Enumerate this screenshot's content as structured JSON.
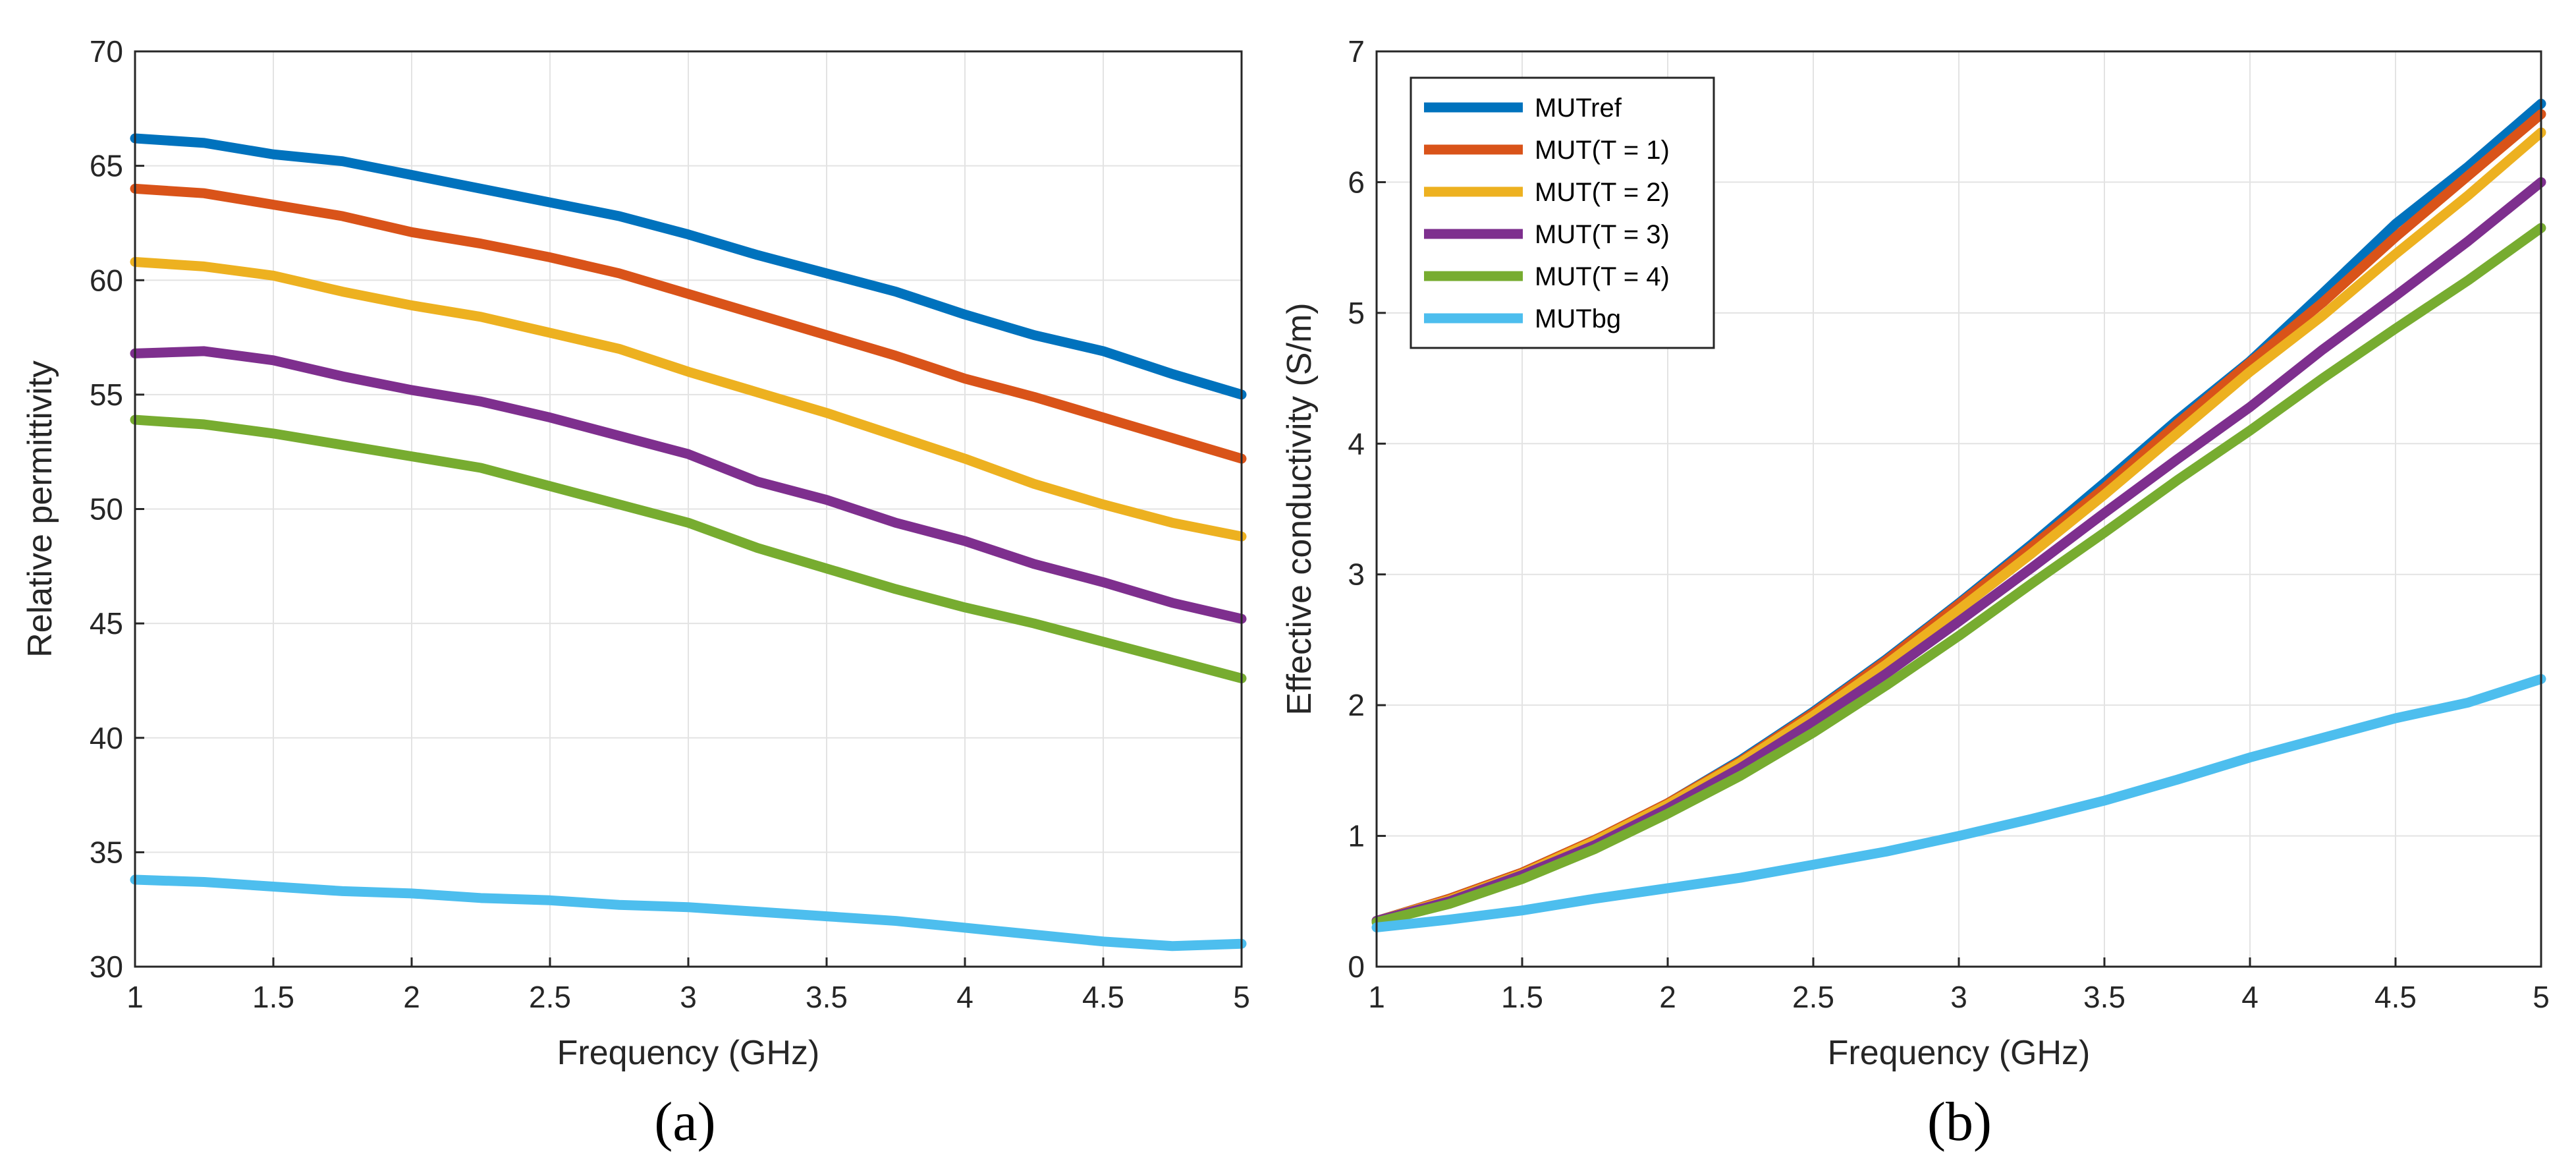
{
  "colors": {
    "MUTref": "#0072BD",
    "MUT(T = 1)": "#D95319",
    "MUT(T = 2)": "#EDB120",
    "MUT(T = 3)": "#7E2F8E",
    "MUT(T = 4)": "#77AC30",
    "MUTbg": "#4DBEEE"
  },
  "chart_data": [
    {
      "type": "line",
      "caption": "(a)",
      "xlabel": "Frequency (GHz)",
      "ylabel": "Relative permittivity",
      "xlim": [
        1,
        5
      ],
      "ylim": [
        30,
        70
      ],
      "xticks": [
        "1",
        "1.5",
        "2",
        "2.5",
        "3",
        "3.5",
        "4",
        "4.5",
        "5"
      ],
      "yticks": [
        "30",
        "35",
        "40",
        "45",
        "50",
        "55",
        "60",
        "65",
        "70"
      ],
      "grid": true,
      "legend": false,
      "x": [
        1,
        1.25,
        1.5,
        1.75,
        2,
        2.25,
        2.5,
        2.75,
        3,
        3.25,
        3.5,
        3.75,
        4,
        4.25,
        4.5,
        4.75,
        5
      ],
      "series": [
        {
          "name": "MUTref",
          "values": [
            66.2,
            66.0,
            65.5,
            65.2,
            64.6,
            64.0,
            63.4,
            62.8,
            62.0,
            61.1,
            60.3,
            59.5,
            58.5,
            57.6,
            56.9,
            55.9,
            55.0
          ]
        },
        {
          "name": "MUT(T = 1)",
          "values": [
            64.0,
            63.8,
            63.3,
            62.8,
            62.1,
            61.6,
            61.0,
            60.3,
            59.4,
            58.5,
            57.6,
            56.7,
            55.7,
            54.9,
            54.0,
            53.1,
            52.2
          ]
        },
        {
          "name": "MUT(T = 2)",
          "values": [
            60.8,
            60.6,
            60.2,
            59.5,
            58.9,
            58.4,
            57.7,
            57.0,
            56.0,
            55.1,
            54.2,
            53.2,
            52.2,
            51.1,
            50.2,
            49.4,
            48.8
          ]
        },
        {
          "name": "MUT(T = 3)",
          "values": [
            56.8,
            56.9,
            56.5,
            55.8,
            55.2,
            54.7,
            54.0,
            53.2,
            52.4,
            51.2,
            50.4,
            49.4,
            48.6,
            47.6,
            46.8,
            45.9,
            45.2
          ]
        },
        {
          "name": "MUT(T = 4)",
          "values": [
            53.9,
            53.7,
            53.3,
            52.8,
            52.3,
            51.8,
            51.0,
            50.2,
            49.4,
            48.3,
            47.4,
            46.5,
            45.7,
            45.0,
            44.2,
            43.4,
            42.6
          ]
        },
        {
          "name": "MUTbg",
          "values": [
            33.8,
            33.7,
            33.5,
            33.3,
            33.2,
            33.0,
            32.9,
            32.7,
            32.6,
            32.4,
            32.2,
            32.0,
            31.7,
            31.4,
            31.1,
            30.9,
            31.0
          ]
        }
      ]
    },
    {
      "type": "line",
      "caption": "(b)",
      "xlabel": "Frequency (GHz)",
      "ylabel": "Effective conductivity (S/m)",
      "xlim": [
        1,
        5
      ],
      "ylim": [
        0,
        7
      ],
      "xticks": [
        "1",
        "1.5",
        "2",
        "2.5",
        "3",
        "3.5",
        "4",
        "4.5",
        "5"
      ],
      "yticks": [
        "0",
        "1",
        "2",
        "3",
        "4",
        "5",
        "6",
        "7"
      ],
      "grid": true,
      "legend": "top-left",
      "x": [
        1,
        1.25,
        1.5,
        1.75,
        2,
        2.25,
        2.5,
        2.75,
        3,
        3.25,
        3.5,
        3.75,
        4,
        4.25,
        4.5,
        4.75,
        5
      ],
      "series": [
        {
          "name": "MUTref",
          "values": [
            0.35,
            0.52,
            0.72,
            0.97,
            1.25,
            1.58,
            1.95,
            2.35,
            2.78,
            3.23,
            3.7,
            4.18,
            4.63,
            5.15,
            5.68,
            6.12,
            6.6
          ]
        },
        {
          "name": "MUT(T = 1)",
          "values": [
            0.35,
            0.52,
            0.72,
            0.97,
            1.25,
            1.57,
            1.94,
            2.34,
            2.77,
            3.21,
            3.66,
            4.15,
            4.62,
            5.08,
            5.58,
            6.05,
            6.52
          ]
        },
        {
          "name": "MUT(T = 2)",
          "values": [
            0.35,
            0.51,
            0.71,
            0.96,
            1.24,
            1.56,
            1.92,
            2.31,
            2.73,
            3.16,
            3.61,
            4.08,
            4.55,
            4.98,
            5.45,
            5.9,
            6.38
          ]
        },
        {
          "name": "MUT(T = 3)",
          "values": [
            0.35,
            0.5,
            0.7,
            0.93,
            1.21,
            1.52,
            1.87,
            2.24,
            2.64,
            3.05,
            3.47,
            3.88,
            4.28,
            4.72,
            5.13,
            5.55,
            6.0
          ]
        },
        {
          "name": "MUT(T = 4)",
          "values": [
            0.34,
            0.48,
            0.67,
            0.9,
            1.17,
            1.46,
            1.79,
            2.15,
            2.53,
            2.93,
            3.32,
            3.72,
            4.1,
            4.5,
            4.88,
            5.25,
            5.65
          ]
        },
        {
          "name": "MUTbg",
          "values": [
            0.3,
            0.36,
            0.43,
            0.52,
            0.6,
            0.68,
            0.78,
            0.88,
            1.0,
            1.13,
            1.27,
            1.43,
            1.6,
            1.75,
            1.9,
            2.02,
            2.2
          ]
        }
      ]
    }
  ]
}
